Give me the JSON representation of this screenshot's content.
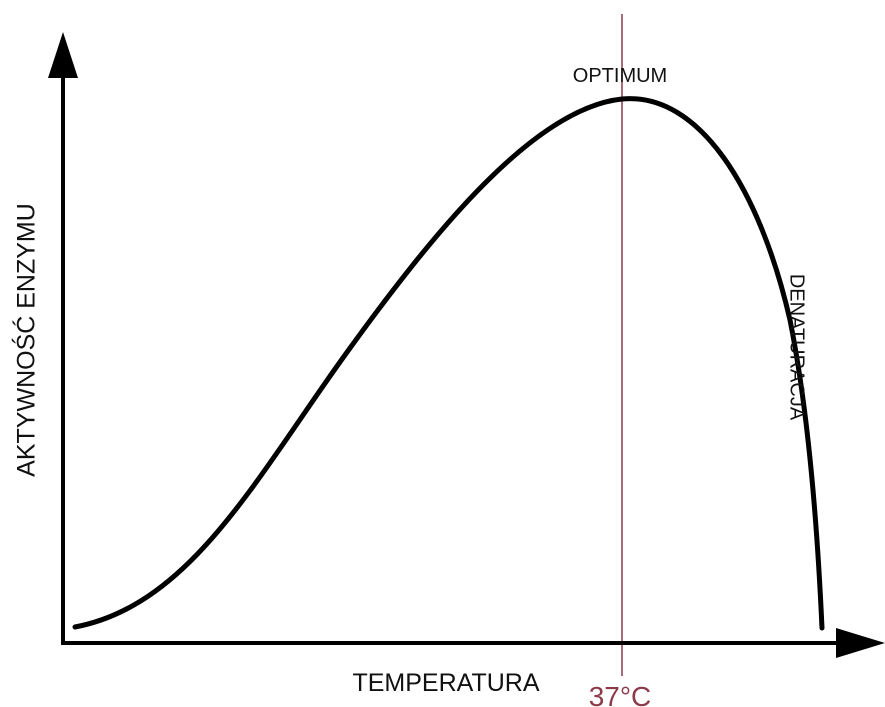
{
  "axes": {
    "y_label": "AKTYWNOŚĆ ENZYMU",
    "x_label": "TEMPERATURA"
  },
  "marker": {
    "label": "37°C"
  },
  "annotations": {
    "peak": "OPTIMUM",
    "decline": "DENATURACJA"
  }
}
